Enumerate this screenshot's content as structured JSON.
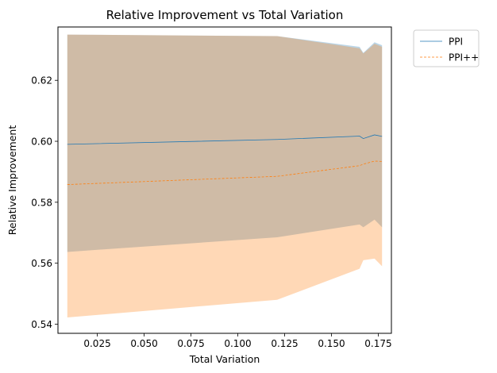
{
  "chart_data": {
    "type": "line",
    "title": "Relative Improvement vs Total Variation",
    "xlabel": "Total Variation",
    "ylabel": "Relative Improvement",
    "xlim": [
      0.004,
      0.182
    ],
    "ylim": [
      0.537,
      0.6375
    ],
    "xticks": [
      "0.025",
      "0.050",
      "0.075",
      "0.100",
      "0.125",
      "0.150",
      "0.175"
    ],
    "xtick_values": [
      0.025,
      0.05,
      0.075,
      0.1,
      0.125,
      0.15,
      0.175
    ],
    "yticks": [
      "0.54",
      "0.56",
      "0.58",
      "0.60",
      "0.62"
    ],
    "ytick_values": [
      0.54,
      0.56,
      0.58,
      0.6,
      0.62
    ],
    "grid": false,
    "legend_position": "outside-top-right",
    "x": [
      0.009,
      0.121,
      0.165,
      0.167,
      0.173,
      0.177
    ],
    "series": [
      {
        "name": "PPI",
        "color": "#1f77b4",
        "line_style": "solid",
        "values": [
          0.599,
          0.6006,
          0.6017,
          0.6009,
          0.6021,
          0.6016
        ],
        "band_upper": [
          0.635,
          0.6345,
          0.631,
          0.629,
          0.6325,
          0.6315
        ],
        "band_lower": [
          0.5637,
          0.5685,
          0.5727,
          0.5718,
          0.5743,
          0.5718
        ]
      },
      {
        "name": "PPI++",
        "color": "#ff7f0e",
        "line_style": "dashed",
        "values": [
          0.5858,
          0.5885,
          0.592,
          0.5925,
          0.5935,
          0.5934
        ],
        "band_upper": [
          0.635,
          0.6345,
          0.6305,
          0.6288,
          0.632,
          0.631
        ],
        "band_lower": [
          0.5422,
          0.548,
          0.5582,
          0.561,
          0.5615,
          0.559
        ]
      }
    ]
  }
}
